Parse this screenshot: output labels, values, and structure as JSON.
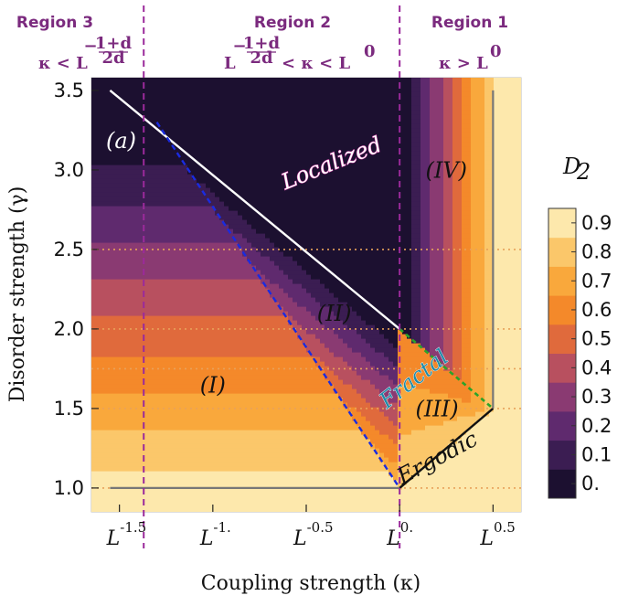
{
  "chart_data": {
    "type": "heatmap",
    "panel_label": "(a)",
    "title_regions": [
      {
        "name": "Region 3",
        "condition": "κ < L^{-(1+d)/(2d)}"
      },
      {
        "name": "Region 2",
        "condition": "L^{-(1+d)/(2d)} < κ < L^0"
      },
      {
        "name": "Region 1",
        "condition": "κ > L^0"
      }
    ],
    "region_boundaries_log10_kappa": [
      -1.37,
      0.0
    ],
    "xlabel": "Coupling strength (κ)",
    "ylabel": "Disorder strength (γ)",
    "x_axis": {
      "scale": "log10 of kappa",
      "range": [
        -1.65,
        0.65
      ],
      "ticks": [
        -1.5,
        -1.0,
        -0.5,
        0.0,
        0.5
      ],
      "tick_labels": [
        "L^{-1.5}",
        "L^{-1.}",
        "L^{-0.5}",
        "L^{0.}",
        "L^{0.5}"
      ]
    },
    "y_axis": {
      "range": [
        0.85,
        3.58
      ],
      "ticks": [
        1.0,
        1.5,
        2.0,
        2.5,
        3.0,
        3.5
      ],
      "tick_labels": [
        "1.0",
        "1.5",
        "2.0",
        "2.5",
        "3.0",
        "3.5"
      ]
    },
    "colorbar": {
      "label": "D_2",
      "levels": [
        0.0,
        0.1,
        0.2,
        0.3,
        0.4,
        0.5,
        0.6,
        0.7,
        0.8,
        0.9
      ],
      "tick_labels": [
        "0.",
        "0.1",
        "0.2",
        "0.3",
        "0.4",
        "0.5",
        "0.6",
        "0.7",
        "0.8",
        "0.9"
      ],
      "colors": [
        "#1c1030",
        "#3b1d52",
        "#5f2a6e",
        "#8a3a72",
        "#b8505f",
        "#e06a3c",
        "#f4892a",
        "#f9a83c",
        "#fbc76a",
        "#fde8ac"
      ]
    },
    "phase_labels": [
      {
        "text": "Localized",
        "x": -0.35,
        "y": 3.0
      },
      {
        "text": "(IV)",
        "x": 0.25,
        "y": 2.95
      },
      {
        "text": "(II)",
        "x": -0.35,
        "y": 2.05
      },
      {
        "text": "(I)",
        "x": -1.0,
        "y": 1.6
      },
      {
        "text": "Fractal",
        "x": 0.1,
        "y": 1.65
      },
      {
        "text": "(III)",
        "x": 0.2,
        "y": 1.45
      },
      {
        "text": "Ergodic",
        "x": 0.22,
        "y": 1.15
      }
    ],
    "boundary_lines": [
      {
        "name": "localization-boundary",
        "style": "white-solid",
        "points": [
          [
            -1.55,
            3.5
          ],
          [
            0.0,
            2.0
          ]
        ]
      },
      {
        "name": "fractal-boundary",
        "style": "blue-dashed",
        "points": [
          [
            -1.3,
            3.3
          ],
          [
            0.0,
            1.0
          ]
        ]
      },
      {
        "name": "region1-fractal-boundary",
        "style": "green-dashed",
        "points": [
          [
            0.0,
            2.0
          ],
          [
            0.5,
            1.5
          ]
        ]
      },
      {
        "name": "ergodic-boundary",
        "style": "black-solid",
        "points": [
          [
            0.0,
            1.0
          ],
          [
            0.5,
            1.5
          ]
        ]
      },
      {
        "name": "lower-cutoff",
        "style": "gray-solid",
        "points": [
          [
            -1.55,
            1.0
          ],
          [
            0.0,
            1.0
          ]
        ]
      },
      {
        "name": "right-cutoff",
        "style": "gray-solid",
        "points": [
          [
            0.5,
            1.5
          ],
          [
            0.5,
            3.5
          ]
        ]
      }
    ],
    "reference_lines_gamma": [
      1.0,
      1.5,
      1.75,
      2.0,
      2.5
    ]
  }
}
